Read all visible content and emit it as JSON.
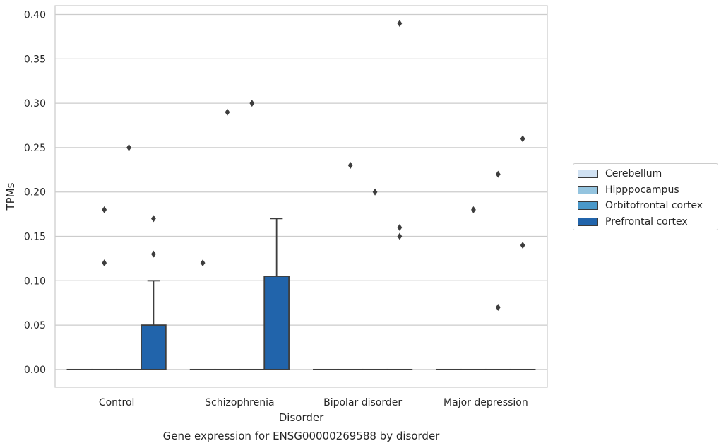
{
  "chart_data": {
    "type": "box",
    "caption": "Gene expression for ENSG00000269588 by disorder",
    "xlabel": "Disorder",
    "ylabel": "TPMs",
    "ylim": [
      -0.02,
      0.41
    ],
    "yticks": [
      "0.00",
      "0.05",
      "0.10",
      "0.15",
      "0.20",
      "0.25",
      "0.30",
      "0.35",
      "0.40"
    ],
    "grid": "horizontal",
    "legend_placement": "right",
    "categories": [
      "Control",
      "Schizophrenia",
      "Bipolar disorder",
      "Major depression"
    ],
    "series": [
      {
        "name": "Cerebellum",
        "color": "#d0e1f2",
        "boxes": [
          {
            "q1": 0,
            "median": 0,
            "q3": 0,
            "whisker_low": 0,
            "whisker_high": 0,
            "outliers": []
          },
          {
            "q1": 0,
            "median": 0,
            "q3": 0,
            "whisker_low": 0,
            "whisker_high": 0,
            "outliers": [
              0.12
            ]
          },
          {
            "q1": 0,
            "median": 0,
            "q3": 0,
            "whisker_low": 0,
            "whisker_high": 0,
            "outliers": []
          },
          {
            "q1": 0,
            "median": 0,
            "q3": 0,
            "whisker_low": 0,
            "whisker_high": 0,
            "outliers": []
          }
        ]
      },
      {
        "name": "Hipppocampus",
        "color": "#94c4df",
        "boxes": [
          {
            "q1": 0,
            "median": 0,
            "q3": 0,
            "whisker_low": 0,
            "whisker_high": 0,
            "outliers": [
              0.12,
              0.18
            ]
          },
          {
            "q1": 0,
            "median": 0,
            "q3": 0,
            "whisker_low": 0,
            "whisker_high": 0,
            "outliers": [
              0.29
            ]
          },
          {
            "q1": 0,
            "median": 0,
            "q3": 0,
            "whisker_low": 0,
            "whisker_high": 0,
            "outliers": [
              0.23
            ]
          },
          {
            "q1": 0,
            "median": 0,
            "q3": 0,
            "whisker_low": 0,
            "whisker_high": 0,
            "outliers": [
              0.18
            ]
          }
        ]
      },
      {
        "name": "Orbitofrontal cortex",
        "color": "#4a98c9",
        "boxes": [
          {
            "q1": 0,
            "median": 0,
            "q3": 0,
            "whisker_low": 0,
            "whisker_high": 0,
            "outliers": [
              0.25
            ]
          },
          {
            "q1": 0,
            "median": 0,
            "q3": 0,
            "whisker_low": 0,
            "whisker_high": 0,
            "outliers": [
              0.3
            ]
          },
          {
            "q1": 0,
            "median": 0,
            "q3": 0,
            "whisker_low": 0,
            "whisker_high": 0,
            "outliers": [
              0.2
            ]
          },
          {
            "q1": 0,
            "median": 0,
            "q3": 0,
            "whisker_low": 0,
            "whisker_high": 0,
            "outliers": [
              0.07,
              0.22
            ]
          }
        ]
      },
      {
        "name": "Prefrontal cortex",
        "color": "#2164ab",
        "boxes": [
          {
            "q1": 0,
            "median": 0,
            "q3": 0.05,
            "whisker_low": 0,
            "whisker_high": 0.1,
            "outliers": [
              0.13,
              0.17
            ]
          },
          {
            "q1": 0,
            "median": 0,
            "q3": 0.105,
            "whisker_low": 0,
            "whisker_high": 0.17,
            "outliers": []
          },
          {
            "q1": 0,
            "median": 0,
            "q3": 0,
            "whisker_low": 0,
            "whisker_high": 0,
            "outliers": [
              0.15,
              0.16,
              0.39
            ]
          },
          {
            "q1": 0,
            "median": 0,
            "q3": 0,
            "whisker_low": 0,
            "whisker_high": 0,
            "outliers": [
              0.14,
              0.26
            ]
          }
        ]
      }
    ]
  }
}
